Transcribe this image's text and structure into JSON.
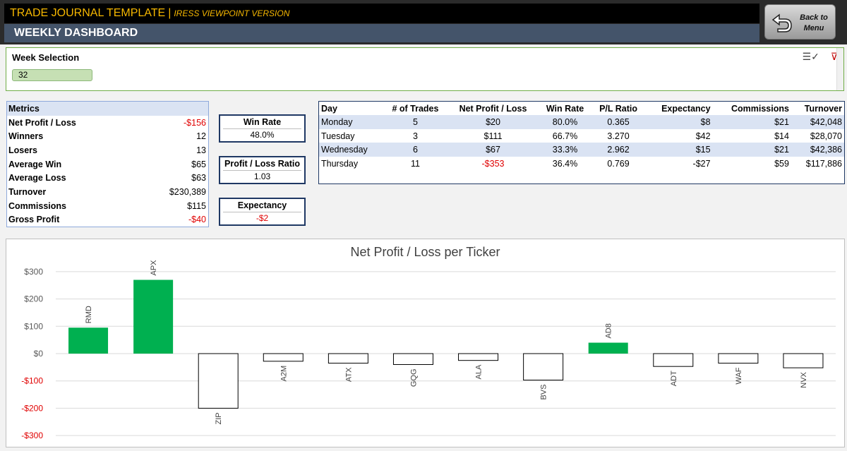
{
  "header": {
    "app_title": "TRADE JOURNAL TEMPLATE",
    "separator": "|",
    "app_subtitle": "IRESS VIEWPOINT VERSION",
    "dashboard_title": "WEEKLY DASHBOARD",
    "back_button": {
      "line1": "Back to",
      "line2": "Menu"
    }
  },
  "week_selection": {
    "label": "Week Selection",
    "value": "32",
    "icons": [
      "multi-select-icon",
      "clear-filter-icon"
    ]
  },
  "metrics": {
    "header": "Metrics",
    "rows": [
      {
        "label": "Net Profit / Loss",
        "value": "-$156",
        "negative": true
      },
      {
        "label": "Winners",
        "value": "12"
      },
      {
        "label": "Losers",
        "value": "13"
      },
      {
        "label": "Average Win",
        "value": "$65"
      },
      {
        "label": "Average Loss",
        "value": "$63"
      },
      {
        "label": "Turnover",
        "value": "$230,389"
      },
      {
        "label": "Commissions",
        "value": "$115"
      },
      {
        "label": "Gross Profit",
        "value": "-$40",
        "negative": true
      }
    ]
  },
  "kpis": {
    "win_rate": {
      "label": "Win Rate",
      "value": "48.0%"
    },
    "pl_ratio": {
      "label": "Profit / Loss Ratio",
      "value": "1.03"
    },
    "expectancy": {
      "label": "Expectancy",
      "value": "-$2"
    }
  },
  "daily_table": {
    "columns": [
      "Day",
      "# of Trades",
      "Net Profit / Loss",
      "Win Rate",
      "P/L Ratio",
      "Expectancy",
      "Commissions",
      "Turnover"
    ],
    "rows": [
      [
        "Monday",
        "5",
        "$20",
        "80.0%",
        "0.365",
        "$8",
        "$21",
        "$42,048"
      ],
      [
        "Tuesday",
        "3",
        "$111",
        "66.7%",
        "3.270",
        "$42",
        "$14",
        "$28,070"
      ],
      [
        "Wednesday",
        "6",
        "$67",
        "33.3%",
        "2.962",
        "$15",
        "$21",
        "$42,386"
      ],
      [
        "Thursday",
        "11",
        "-$353",
        "36.4%",
        "0.769",
        "-$27",
        "$59",
        "$117,886"
      ]
    ]
  },
  "colors": {
    "title_accent": "#f7b800",
    "dash_bar": "#44546a",
    "positive_bar": "#00b050",
    "negative_text": "#e00000"
  },
  "chart_data": {
    "type": "bar",
    "title": "Net Profit / Loss per Ticker",
    "categories": [
      "RMD",
      "APX",
      "ZIP",
      "A2M",
      "ATX",
      "GQG",
      "ALA",
      "BVS",
      "AD8",
      "ADT",
      "WAF",
      "NVX"
    ],
    "values": [
      95,
      270,
      -200,
      -28,
      -35,
      -40,
      -25,
      -97,
      40,
      -47,
      -35,
      -52
    ],
    "ylim": [
      -300,
      300
    ],
    "yticks": [
      300,
      200,
      100,
      0,
      -100,
      -200,
      -300
    ],
    "ytick_labels": [
      "$300",
      "$200",
      "$100",
      "$0",
      "-$100",
      "-$200",
      "-$300"
    ],
    "grid": true,
    "legend": false
  }
}
